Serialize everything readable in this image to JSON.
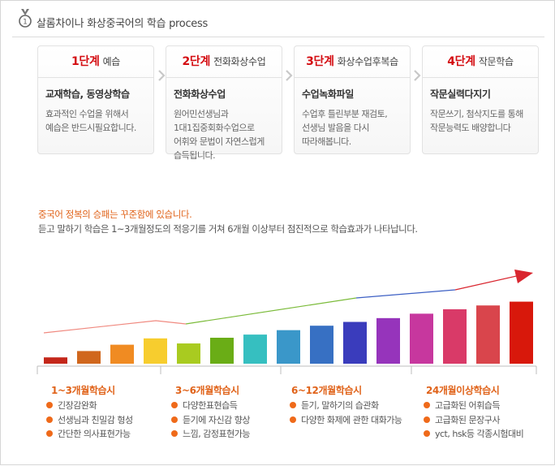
{
  "header": {
    "title": "살롬차이나 화상중국어의 학습 process",
    "icon": "medal-icon"
  },
  "steps": [
    {
      "number": "1단계",
      "name": "예습",
      "subtitle": "교재학습, 동영상학습",
      "description": "효과적인 수업을 위해서\n예습은 반드시필요합니다."
    },
    {
      "number": "2단계",
      "name": "전화화상수업",
      "subtitle": "전화화상수업",
      "description": "원어민선생님과\n1대1집중회화수업으로\n어휘와 문법이 자연스럽게\n습득됩니다."
    },
    {
      "number": "3단계",
      "name": "화상수업후복습",
      "subtitle": "수업녹화파일",
      "description": "수업후 틀린부분 재검토,\n선생님 발음을 다시\n따라해봅니다."
    },
    {
      "number": "4단계",
      "name": "작문학습",
      "subtitle": "작문실력다지기",
      "description": "작문쓰기, 첨삭지도를 통해\n작문능력도 배양합니다"
    }
  ],
  "intro": {
    "highlight": "중국어 정복의 승패는 꾸준함에 있습니다.",
    "text": "듣고 말하기 학습은 1~3개월정도의 적응기를 거쳐 6개월 이상부터 점진적으로 학습효과가 나타납니다."
  },
  "chart_data": {
    "type": "bar",
    "values": [
      1,
      2,
      3,
      4,
      3.2,
      4.1,
      4.6,
      5.3,
      6.0,
      6.6,
      7.2,
      7.9,
      8.6,
      9.2,
      9.8
    ],
    "colors": [
      "#c4271a",
      "#d0671d",
      "#f08b22",
      "#f7cd2e",
      "#a9cb20",
      "#6aad16",
      "#36bfc0",
      "#3a97c9",
      "#3770c3",
      "#3a3cbc",
      "#9634bb",
      "#c7379e",
      "#d93a68",
      "#d9454c",
      "#d8180b"
    ],
    "trend_colors": [
      "#f08a80",
      "#7bbb3a",
      "#3c5fc4",
      "#d9262f"
    ],
    "grid": false
  },
  "phases": [
    {
      "title": "1~3개월학습시",
      "items": [
        "긴장감완화",
        "선생님과 친밀감 형성",
        "간단한 의사표현가능"
      ]
    },
    {
      "title": "3~6개월학습시",
      "items": [
        "다양한표현습득",
        "듣기에 자신감 향상",
        "느낌, 감정표현가능"
      ]
    },
    {
      "title": "6~12개월학습시",
      "items": [
        "듣기, 말하기의 습관화",
        "다양한 화제에 관한 대화가능"
      ]
    },
    {
      "title": "24개월이상학습시",
      "items": [
        "고급화된 어휘습득",
        "고급화된 문장구사",
        "yct, hsk등 각종시험대비"
      ]
    }
  ]
}
